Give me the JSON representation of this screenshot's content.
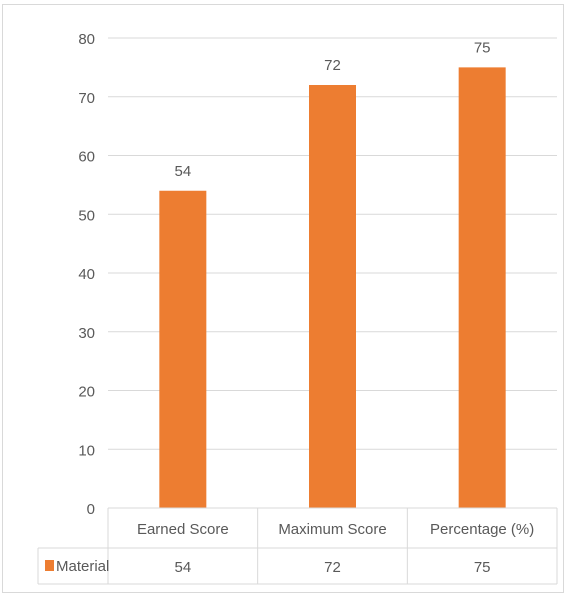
{
  "chart_data": {
    "type": "bar",
    "categories": [
      "Earned Score",
      "Maximum Score",
      "Percentage  (%)"
    ],
    "series": [
      {
        "name": "Material",
        "values": [
          54,
          72,
          75
        ]
      }
    ],
    "data_labels": [
      "54",
      "72",
      "75"
    ],
    "y_ticks": [
      "0",
      "10",
      "20",
      "30",
      "40",
      "50",
      "60",
      "70",
      "80"
    ],
    "ylim": [
      0,
      80
    ],
    "grid": true,
    "data_table": true,
    "colors": {
      "bar": "#ed7d31",
      "grid": "#d9d9d9",
      "text": "#595959"
    }
  }
}
